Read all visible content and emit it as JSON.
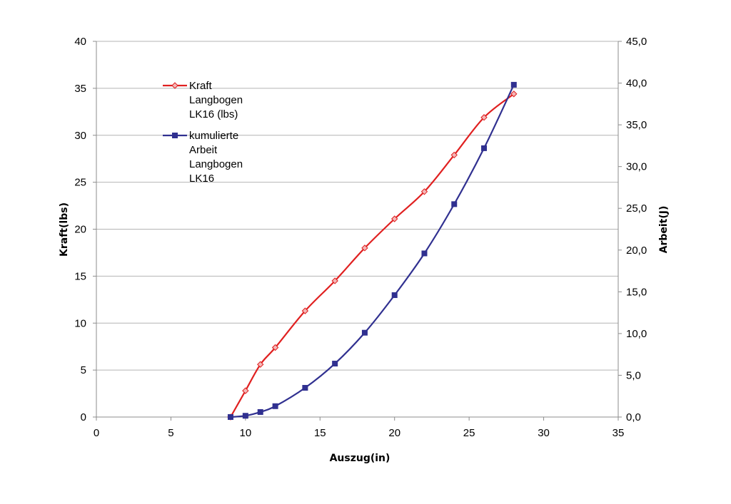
{
  "chart_data": {
    "type": "line",
    "title": "",
    "xlabel": "Auszug(in)",
    "ylabel_left": "Kraft(lbs)",
    "ylabel_right": "Arbeit(J)",
    "xlim": [
      0,
      35
    ],
    "ylim_left": [
      0,
      40
    ],
    "ylim_right": [
      0,
      45
    ],
    "x_ticks": [
      "0",
      "5",
      "10",
      "15",
      "20",
      "25",
      "30",
      "35"
    ],
    "y_left_ticks": [
      "0",
      "5",
      "10",
      "15",
      "20",
      "25",
      "30",
      "35",
      "40"
    ],
    "y_right_ticks": [
      "0,0",
      "5,0",
      "10,0",
      "15,0",
      "20,0",
      "25,0",
      "30,0",
      "35,0",
      "40,0",
      "45,0"
    ],
    "grid": true,
    "legend_position": "top-left",
    "series": [
      {
        "name": "Kraft Langbogen LK16 (lbs)",
        "name_lines": [
          "Kraft",
          "Langbogen",
          "LK16 (lbs)"
        ],
        "axis": "left",
        "color": "#e02020",
        "marker": "diamond",
        "x": [
          9,
          10,
          11,
          12,
          14,
          16,
          18,
          20,
          22,
          24,
          26,
          28
        ],
        "y": [
          0,
          2.8,
          5.6,
          7.4,
          11.3,
          14.5,
          18.0,
          21.1,
          24.0,
          27.9,
          31.9,
          34.4
        ]
      },
      {
        "name": "kumulierte Arbeit Langbogen LK16",
        "name_lines": [
          "kumulierte",
          "Arbeit",
          "Langbogen",
          "LK16"
        ],
        "axis": "right",
        "color": "#303090",
        "marker": "square",
        "x": [
          9,
          10,
          11,
          12,
          14,
          16,
          18,
          20,
          22,
          24,
          26,
          28
        ],
        "y": [
          0,
          0.15,
          0.6,
          1.3,
          3.5,
          6.4,
          10.1,
          14.6,
          19.6,
          25.5,
          32.2,
          39.8
        ]
      }
    ]
  }
}
